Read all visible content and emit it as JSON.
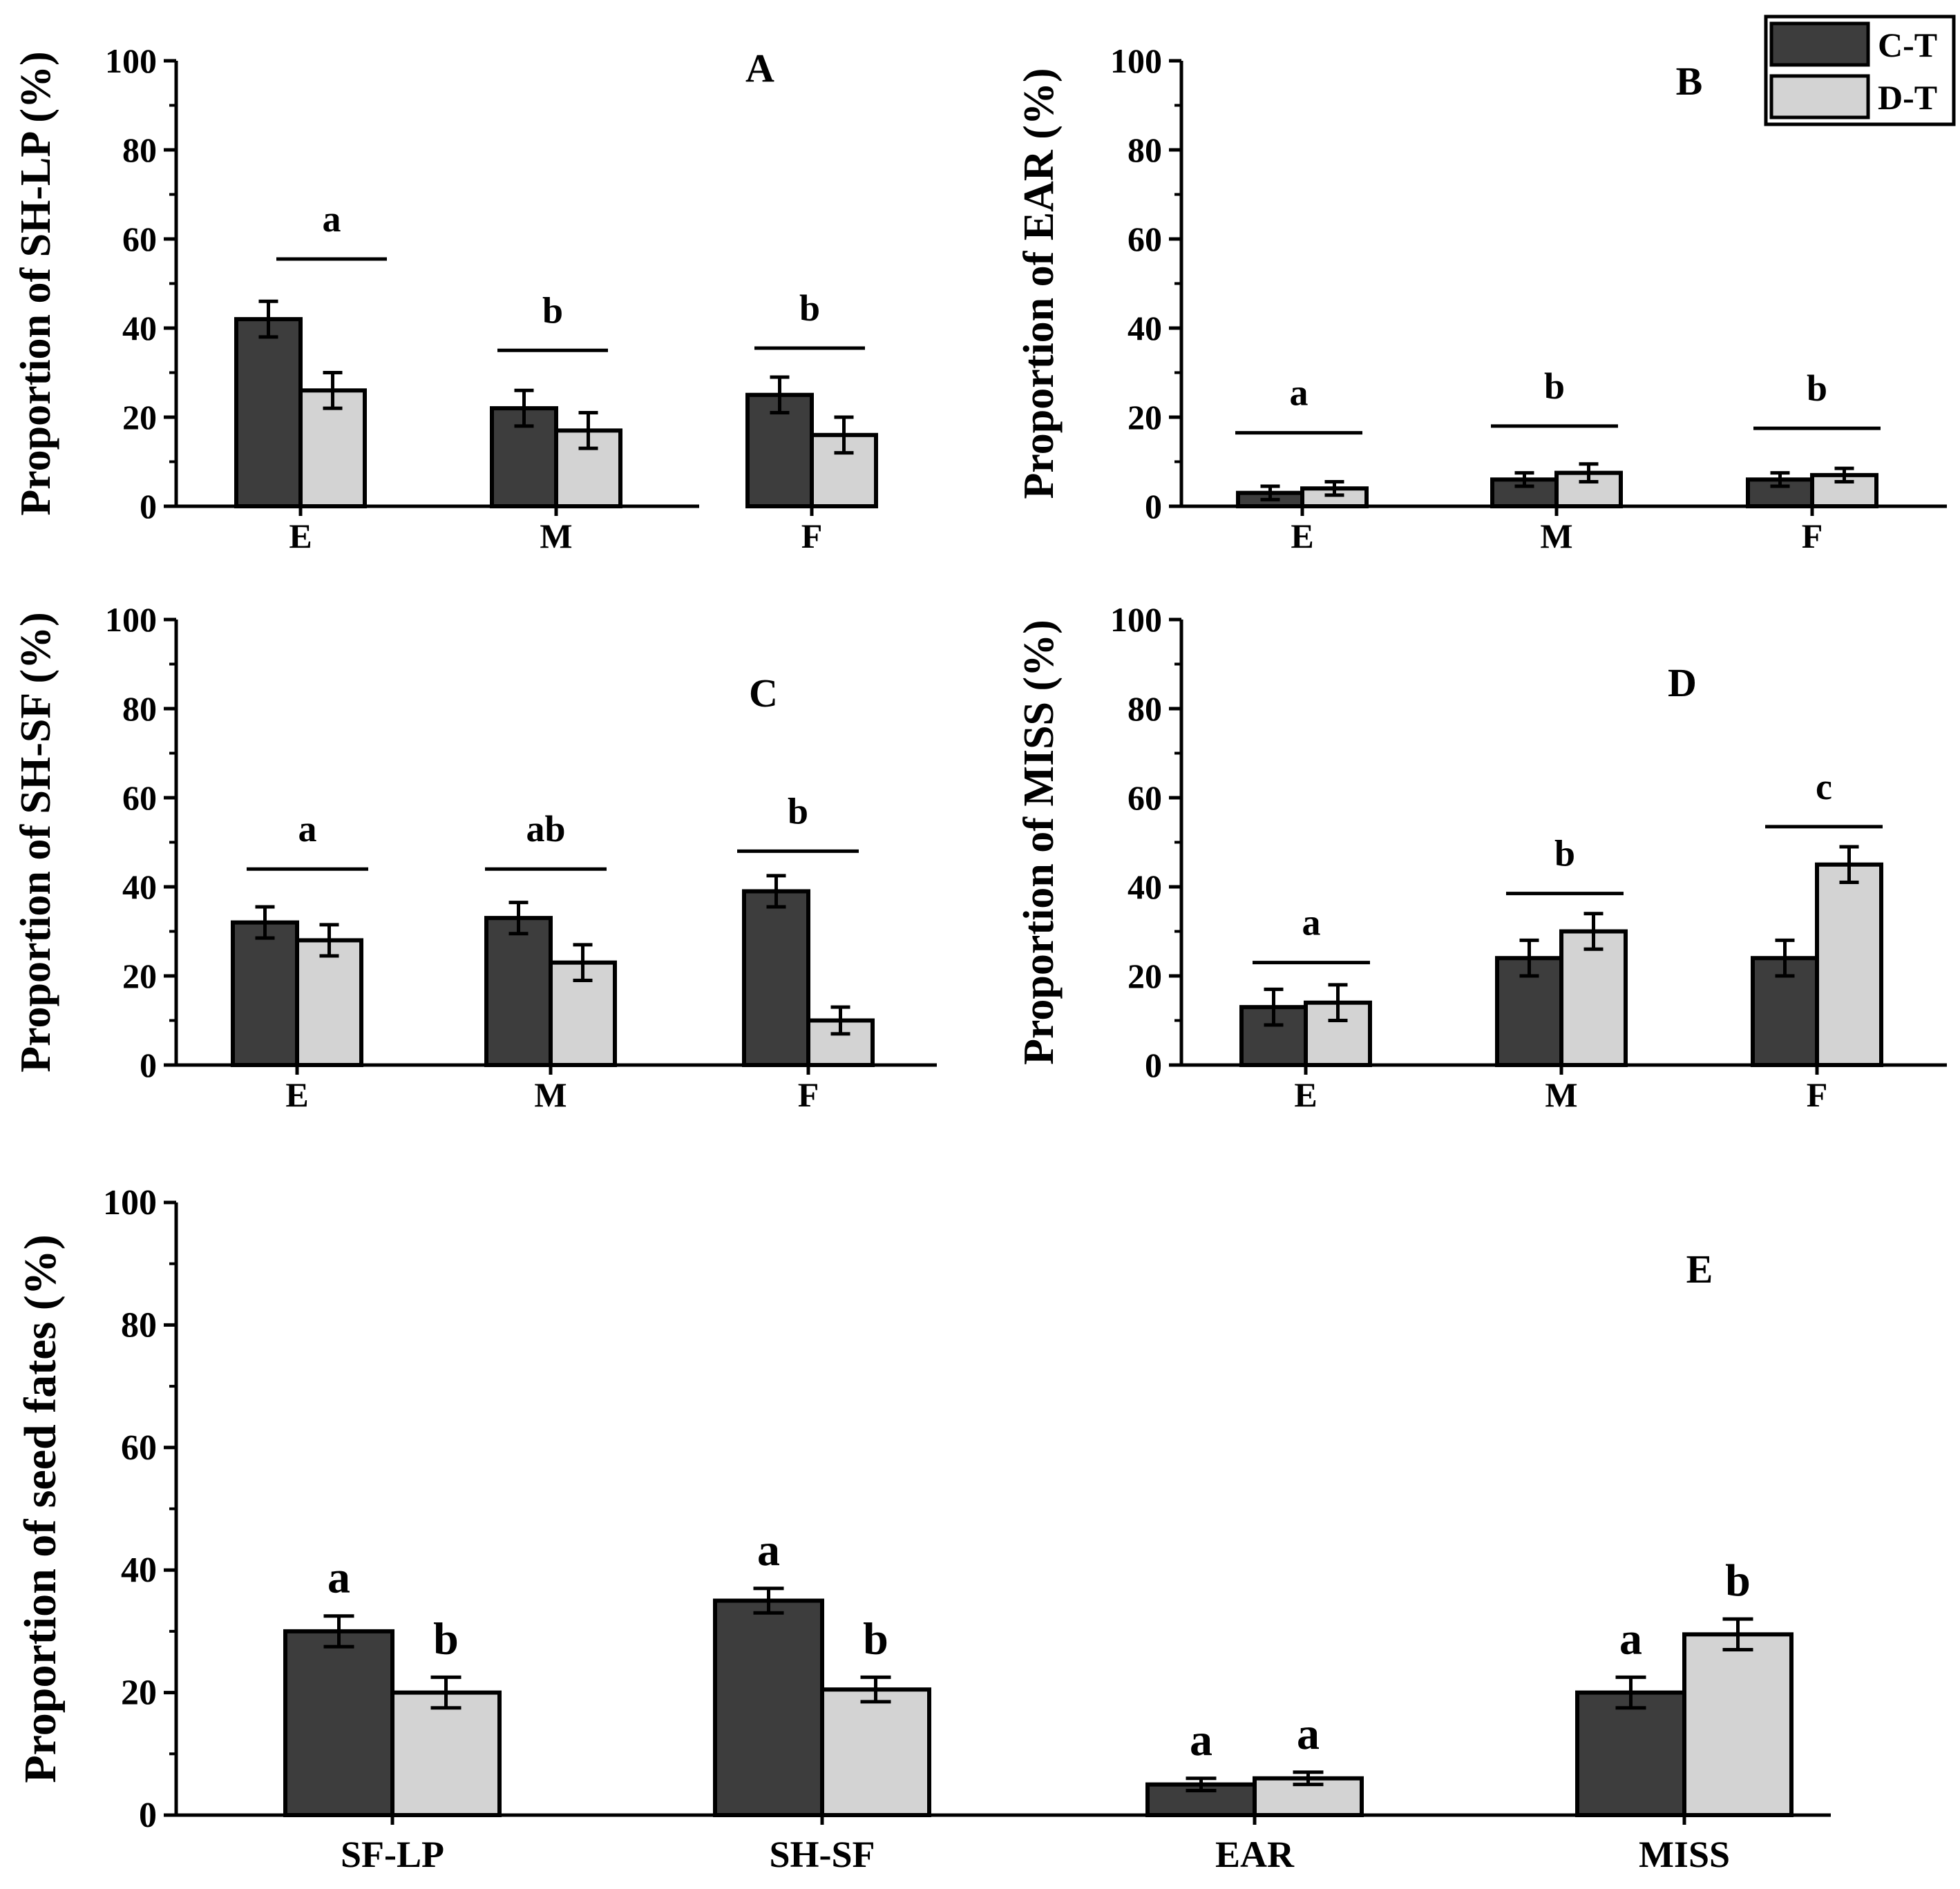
{
  "legend": {
    "items": [
      {
        "label": "C-T",
        "color": "#3d3d3d"
      },
      {
        "label": "D-T",
        "color": "#d3d3d3"
      }
    ]
  },
  "chart_data": [
    {
      "id": "A",
      "type": "bar",
      "panel_label": "A",
      "ylabel": "Proportion of SH-LP (%)",
      "ylim": [
        0,
        100
      ],
      "yticks": [
        "0",
        "20",
        "40",
        "60",
        "80",
        "100"
      ],
      "categories": [
        "E",
        "M",
        "F"
      ],
      "series": [
        {
          "name": "C-T",
          "values": [
            42,
            22,
            25
          ],
          "errors": [
            4,
            4,
            4
          ]
        },
        {
          "name": "D-T",
          "values": [
            26,
            17,
            16
          ],
          "errors": [
            4,
            4,
            4
          ]
        }
      ],
      "group_letters": [
        {
          "letter": "a",
          "line_y": 55.5
        },
        {
          "letter": "b",
          "line_y": 35
        },
        {
          "letter": "b",
          "line_y": 35.5
        }
      ]
    },
    {
      "id": "B",
      "type": "bar",
      "panel_label": "B",
      "ylabel": "Proportion of EAR (%)",
      "ylim": [
        0,
        100
      ],
      "yticks": [
        "0",
        "20",
        "40",
        "60",
        "80",
        "100"
      ],
      "categories": [
        "E",
        "M",
        "F"
      ],
      "series": [
        {
          "name": "C-T",
          "values": [
            3,
            6,
            6
          ],
          "errors": [
            1.5,
            1.5,
            1.5
          ]
        },
        {
          "name": "D-T",
          "values": [
            4,
            7.5,
            7
          ],
          "errors": [
            1.5,
            2,
            1.5
          ]
        }
      ],
      "group_letters": [
        {
          "letter": "a",
          "line_y": 16.5
        },
        {
          "letter": "b",
          "line_y": 18
        },
        {
          "letter": "b",
          "line_y": 17.5
        }
      ]
    },
    {
      "id": "C",
      "type": "bar",
      "panel_label": "C",
      "ylabel": "Proportion of SH-SF (%)",
      "ylim": [
        0,
        100
      ],
      "yticks": [
        "0",
        "20",
        "40",
        "60",
        "80",
        "100"
      ],
      "categories": [
        "E",
        "M",
        "F"
      ],
      "series": [
        {
          "name": "C-T",
          "values": [
            32,
            33,
            39
          ],
          "errors": [
            3.5,
            3.5,
            3.5
          ]
        },
        {
          "name": "D-T",
          "values": [
            28,
            23,
            10
          ],
          "errors": [
            3.5,
            4,
            3
          ]
        }
      ],
      "group_letters": [
        {
          "letter": "a",
          "line_y": 44
        },
        {
          "letter": "ab",
          "line_y": 44
        },
        {
          "letter": "b",
          "line_y": 48
        }
      ]
    },
    {
      "id": "D",
      "type": "bar",
      "panel_label": "D",
      "ylabel": "Proportion of MISS (%)",
      "ylim": [
        0,
        100
      ],
      "yticks": [
        "0",
        "20",
        "40",
        "60",
        "80",
        "100"
      ],
      "categories": [
        "E",
        "M",
        "F"
      ],
      "series": [
        {
          "name": "C-T",
          "values": [
            13,
            24,
            24
          ],
          "errors": [
            4,
            4,
            4
          ]
        },
        {
          "name": "D-T",
          "values": [
            14,
            30,
            45
          ],
          "errors": [
            4,
            4,
            4
          ]
        }
      ],
      "group_letters": [
        {
          "letter": "a",
          "line_y": 23
        },
        {
          "letter": "b",
          "line_y": 38.5
        },
        {
          "letter": "c",
          "line_y": 53.5
        }
      ]
    },
    {
      "id": "E",
      "type": "bar",
      "panel_label": "E",
      "ylabel": "Proportion of seed fates (%)",
      "ylim": [
        0,
        100
      ],
      "yticks": [
        "0",
        "20",
        "40",
        "60",
        "80",
        "100"
      ],
      "categories": [
        "SF-LP",
        "SH-SF",
        "EAR",
        "MISS"
      ],
      "series": [
        {
          "name": "C-T",
          "values": [
            30,
            35,
            5,
            20
          ],
          "errors": [
            2.5,
            2,
            1,
            2.5
          ]
        },
        {
          "name": "D-T",
          "values": [
            20,
            20.5,
            6,
            29.5
          ],
          "errors": [
            2.5,
            2,
            1,
            2.5
          ]
        }
      ],
      "bar_letters": [
        [
          "a",
          "b"
        ],
        [
          "a",
          "b"
        ],
        [
          "a",
          "a"
        ],
        [
          "a",
          "b"
        ]
      ]
    }
  ]
}
